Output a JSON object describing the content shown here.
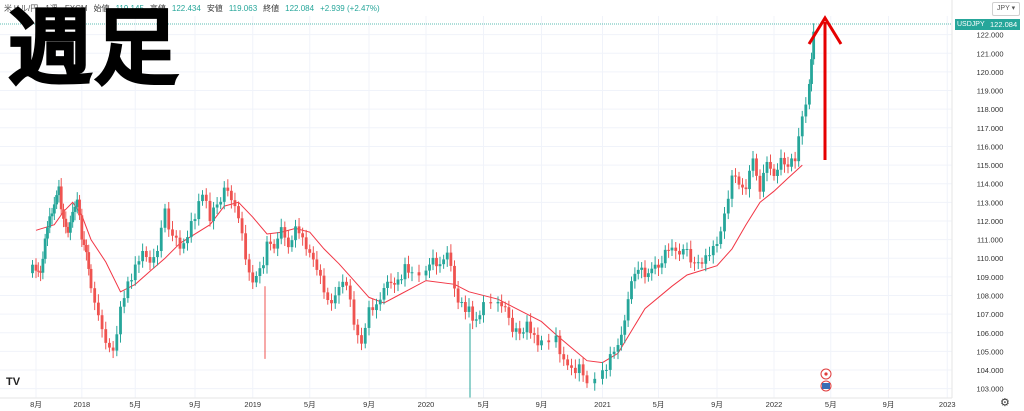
{
  "overlay": {
    "big_label": "週足"
  },
  "header": {
    "symbol_text": "米ドル/円 · 1週 · FXCM",
    "ohlc": {
      "open_label": "始値",
      "open": "119.145",
      "high_label": "高値",
      "high": "122.434",
      "low_label": "安値",
      "low": "119.063",
      "close_label": "終値",
      "close": "122.084",
      "change": "+2.939 (+2.47%)"
    },
    "currency_button": "JPY"
  },
  "price_tag": {
    "symbol": "USDJPY",
    "value": "122.084"
  },
  "chart_data": {
    "type": "candlestick",
    "instrument": "USDJPY",
    "interval": "1W",
    "ylim": [
      102.5,
      123.0
    ],
    "y_ticks": [
      "103.000",
      "104.000",
      "105.000",
      "106.000",
      "107.000",
      "108.000",
      "109.000",
      "110.000",
      "111.000",
      "112.000",
      "113.000",
      "114.000",
      "115.000",
      "116.000",
      "117.000",
      "118.000",
      "119.000",
      "120.000",
      "121.000",
      "122.000"
    ],
    "x_ticks": [
      {
        "label": "8月",
        "date": "2017-08"
      },
      {
        "label": "2018",
        "date": "2018-01"
      },
      {
        "label": "5月",
        "date": "2018-05"
      },
      {
        "label": "9月",
        "date": "2018-09"
      },
      {
        "label": "2019",
        "date": "2019-01"
      },
      {
        "label": "5月",
        "date": "2019-05"
      },
      {
        "label": "9月",
        "date": "2019-09"
      },
      {
        "label": "2020",
        "date": "2020-01"
      },
      {
        "label": "5月",
        "date": "2020-05"
      },
      {
        "label": "9月",
        "date": "2020-09"
      },
      {
        "label": "2021",
        "date": "2021-01"
      },
      {
        "label": "5月",
        "date": "2021-05"
      },
      {
        "label": "9月",
        "date": "2021-09"
      },
      {
        "label": "2022",
        "date": "2022-01"
      },
      {
        "label": "5月",
        "date": "2022-05"
      },
      {
        "label": "9月",
        "date": "2022-09"
      },
      {
        "label": "2023",
        "date": "2023-01"
      }
    ],
    "moving_average": [
      [
        "2017-08",
        111.5
      ],
      [
        "2017-10",
        111.8
      ],
      [
        "2017-11",
        112.5
      ],
      [
        "2017-12",
        113.0
      ],
      [
        "2018-01",
        112.3
      ],
      [
        "2018-02",
        111.0
      ],
      [
        "2018-03",
        109.8
      ],
      [
        "2018-04",
        108.2
      ],
      [
        "2018-05",
        108.6
      ],
      [
        "2018-06",
        109.3
      ],
      [
        "2018-07",
        110.0
      ],
      [
        "2018-08",
        110.8
      ],
      [
        "2018-10",
        111.8
      ],
      [
        "2018-11",
        112.8
      ],
      [
        "2018-12",
        113.0
      ],
      [
        "2019-01",
        112.2
      ],
      [
        "2019-02",
        111.3
      ],
      [
        "2019-03",
        111.4
      ],
      [
        "2019-04",
        111.6
      ],
      [
        "2019-05",
        111.4
      ],
      [
        "2019-06",
        110.5
      ],
      [
        "2019-07",
        109.7
      ],
      [
        "2019-08",
        108.8
      ],
      [
        "2019-09",
        107.9
      ],
      [
        "2019-10",
        107.6
      ],
      [
        "2019-11",
        108.0
      ],
      [
        "2019-12",
        108.4
      ],
      [
        "2020-01",
        108.8
      ],
      [
        "2020-03",
        108.6
      ],
      [
        "2020-04",
        108.2
      ],
      [
        "2020-06",
        107.8
      ],
      [
        "2020-07",
        107.4
      ],
      [
        "2020-09",
        106.6
      ],
      [
        "2020-10",
        105.9
      ],
      [
        "2020-11",
        105.2
      ],
      [
        "2020-12",
        104.5
      ],
      [
        "2021-01",
        104.4
      ],
      [
        "2021-02",
        104.9
      ],
      [
        "2021-03",
        106.1
      ],
      [
        "2021-04",
        107.3
      ],
      [
        "2021-06",
        108.5
      ],
      [
        "2021-07",
        109.1
      ],
      [
        "2021-09",
        109.6
      ],
      [
        "2021-10",
        110.5
      ],
      [
        "2021-11",
        111.8
      ],
      [
        "2021-12",
        113.0
      ],
      [
        "2022-01",
        113.6
      ],
      [
        "2022-02",
        114.3
      ],
      [
        "2022-03",
        115.0
      ]
    ],
    "closes": [
      [
        "2017-08",
        109.6
      ],
      [
        "2017-08b",
        109.2
      ],
      [
        "2017-09",
        110.8
      ],
      [
        "2017-09b",
        112.3
      ],
      [
        "2017-10",
        112.6
      ],
      [
        "2017-10b",
        113.6
      ],
      [
        "2017-11",
        112.0
      ],
      [
        "2017-11b",
        111.6
      ],
      [
        "2017-12",
        112.6
      ],
      [
        "2017-12b",
        113.4
      ],
      [
        "2018-01",
        111.2
      ],
      [
        "2018-01b",
        110.6
      ],
      [
        "2018-02",
        108.4
      ],
      [
        "2018-02b",
        106.8
      ],
      [
        "2018-03",
        105.6
      ],
      [
        "2018-03b",
        105.0
      ],
      [
        "2018-04",
        107.4
      ],
      [
        "2018-04b",
        108.6
      ],
      [
        "2018-05",
        109.4
      ],
      [
        "2018-05b",
        110.2
      ],
      [
        "2018-06",
        109.6
      ],
      [
        "2018-06b",
        110.4
      ],
      [
        "2018-07",
        112.4
      ],
      [
        "2018-07b",
        111.2
      ],
      [
        "2018-08",
        110.8
      ],
      [
        "2018-08b",
        111.2
      ],
      [
        "2018-09",
        112.4
      ],
      [
        "2018-09b",
        113.6
      ],
      [
        "2018-10",
        112.2
      ],
      [
        "2018-10b",
        112.8
      ],
      [
        "2018-11",
        113.6
      ],
      [
        "2018-11b",
        113.2
      ],
      [
        "2018-12",
        112.4
      ],
      [
        "2018-12b",
        110.0
      ],
      [
        "2019-01",
        108.6
      ],
      [
        "2019-01b",
        109.2
      ],
      [
        "2019-02",
        110.6
      ],
      [
        "2019-02b",
        110.8
      ],
      [
        "2019-03",
        111.6
      ],
      [
        "2019-03b",
        110.6
      ],
      [
        "2019-04",
        111.8
      ],
      [
        "2019-04b",
        111.2
      ],
      [
        "2019-05",
        110.0
      ],
      [
        "2019-05b",
        109.4
      ],
      [
        "2019-06",
        108.2
      ],
      [
        "2019-06b",
        107.8
      ],
      [
        "2019-07",
        108.4
      ],
      [
        "2019-07b",
        108.6
      ],
      [
        "2019-08",
        106.4
      ],
      [
        "2019-08b",
        105.4
      ],
      [
        "2019-09",
        107.2
      ],
      [
        "2019-09b",
        107.6
      ],
      [
        "2019-10",
        108.4
      ],
      [
        "2019-10b",
        108.6
      ],
      [
        "2019-11",
        108.6
      ],
      [
        "2019-11b",
        109.4
      ],
      [
        "2019-12",
        109.4
      ],
      [
        "2020-01",
        109.2
      ],
      [
        "2020-01b",
        109.8
      ],
      [
        "2020-02",
        109.6
      ],
      [
        "2020-02b",
        110.4
      ],
      [
        "2020-03",
        108.2
      ],
      [
        "2020-03b",
        107.6
      ],
      [
        "2020-04",
        107.2
      ],
      [
        "2020-04b",
        106.6
      ],
      [
        "2020-05",
        107.6
      ],
      [
        "2020-06",
        107.4
      ],
      [
        "2020-06b",
        107.2
      ],
      [
        "2020-07",
        106.2
      ],
      [
        "2020-07b",
        105.8
      ],
      [
        "2020-08",
        106.6
      ],
      [
        "2020-08b",
        105.6
      ],
      [
        "2020-09",
        105.4
      ],
      [
        "2020-10",
        105.6
      ],
      [
        "2020-10b",
        104.6
      ],
      [
        "2020-11",
        104.0
      ],
      [
        "2020-11b",
        104.2
      ],
      [
        "2020-12",
        103.4
      ],
      [
        "2021-01",
        103.8
      ],
      [
        "2021-01b",
        104.8
      ],
      [
        "2021-02",
        105.4
      ],
      [
        "2021-02b",
        106.8
      ],
      [
        "2021-03",
        108.8
      ],
      [
        "2021-03b",
        109.6
      ],
      [
        "2021-04",
        108.8
      ],
      [
        "2021-04b",
        109.2
      ],
      [
        "2021-05",
        109.6
      ],
      [
        "2021-05b",
        110.2
      ],
      [
        "2021-06",
        110.6
      ],
      [
        "2021-06b",
        110.4
      ],
      [
        "2021-07",
        110.2
      ],
      [
        "2021-07b",
        109.6
      ],
      [
        "2021-08",
        109.8
      ],
      [
        "2021-08b",
        110.2
      ],
      [
        "2021-09",
        110.6
      ],
      [
        "2021-09b",
        112.2
      ],
      [
        "2021-10",
        114.2
      ],
      [
        "2021-10b",
        114.0
      ],
      [
        "2021-11",
        113.8
      ],
      [
        "2021-11b",
        115.2
      ],
      [
        "2021-12",
        113.4
      ],
      [
        "2021-12b",
        115.2
      ],
      [
        "2022-01",
        114.4
      ],
      [
        "2022-01b",
        115.2
      ],
      [
        "2022-02",
        115.0
      ],
      [
        "2022-02b",
        115.2
      ],
      [
        "2022-03",
        117.4
      ],
      [
        "2022-03b",
        119.2
      ],
      [
        "2022-03c",
        122.08
      ]
    ],
    "annotation": "arrow-up"
  }
}
